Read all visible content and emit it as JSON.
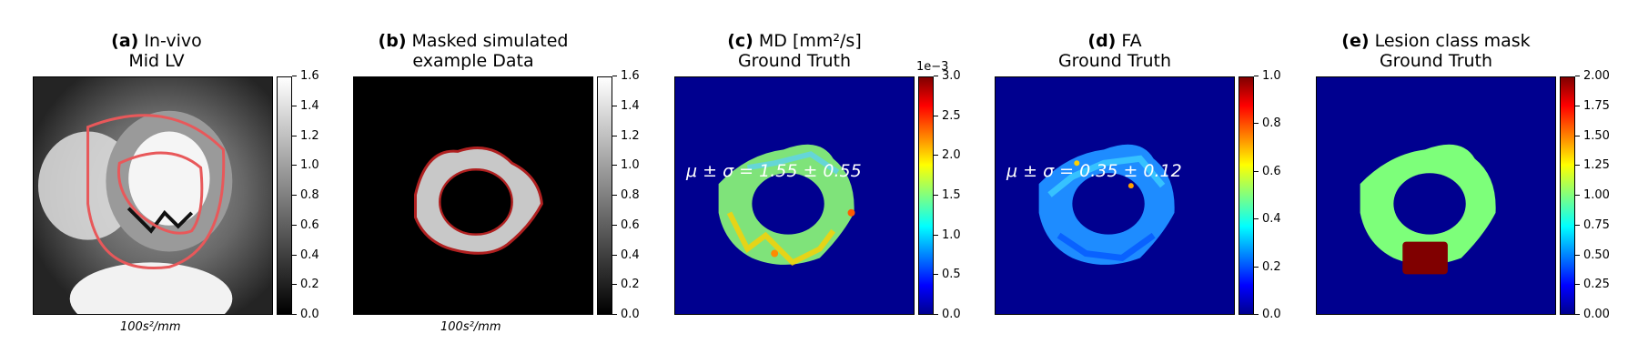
{
  "panels": [
    {
      "id": "a",
      "label": "(a)",
      "title_rest": " In-vivo",
      "title_line2": "Mid LV",
      "xlabel": "100s²/mm",
      "colormap": "gray",
      "colorbar_ticks": [
        "0.0",
        "0.2",
        "0.4",
        "0.6",
        "0.8",
        "1.0",
        "1.2",
        "1.4",
        "1.6"
      ]
    },
    {
      "id": "b",
      "label": "(b)",
      "title_rest": " Masked simulated",
      "title_line2": "example Data",
      "xlabel": "100s²/mm",
      "colormap": "gray",
      "colorbar_ticks": [
        "0.0",
        "0.2",
        "0.4",
        "0.6",
        "0.8",
        "1.0",
        "1.2",
        "1.4",
        "1.6"
      ]
    },
    {
      "id": "c",
      "label": "(c)",
      "title_rest": " MD [mm²/s]",
      "title_line2": "Ground Truth",
      "stat": "μ ± σ = 1.55 ± 0.55",
      "scale_label": "1e−3",
      "colormap": "jet",
      "colorbar_ticks": [
        "0.0",
        "0.5",
        "1.0",
        "1.5",
        "2.0",
        "2.5",
        "3.0"
      ]
    },
    {
      "id": "d",
      "label": "(d)",
      "title_rest": " FA",
      "title_line2": "Ground Truth",
      "stat": "μ ± σ = 0.35 ± 0.12",
      "colormap": "jet",
      "colorbar_ticks": [
        "0.0",
        "0.2",
        "0.4",
        "0.6",
        "0.8",
        "1.0"
      ]
    },
    {
      "id": "e",
      "label": "(e)",
      "title_rest": " Lesion class mask",
      "title_line2": "Ground Truth",
      "colormap": "jet",
      "colorbar_ticks": [
        "0.00",
        "0.25",
        "0.50",
        "0.75",
        "1.00",
        "1.25",
        "1.50",
        "1.75",
        "2.00"
      ]
    }
  ],
  "colors": {
    "contour": "#e8585a",
    "jet_background": "#00008f",
    "md_ring": "#7fe37a",
    "fa_ring": "#1e8cff",
    "mask_ring": "#7dff7a",
    "lesion": "#800000"
  }
}
